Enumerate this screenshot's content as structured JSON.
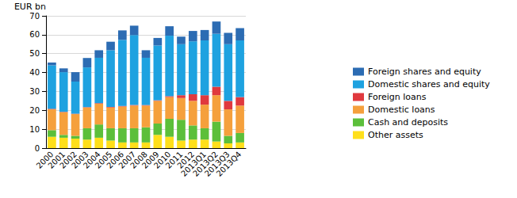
{
  "chart_data": {
    "type": "bar",
    "stacked": true,
    "grid": true,
    "legend": "right",
    "y_label": "EUR bn",
    "categories": [
      "2000",
      "2001",
      "2002",
      "2003",
      "2004",
      "2005",
      "2006",
      "2007",
      "2008",
      "2009",
      "2010",
      "2011",
      "2012",
      "2013Q1",
      "2013Q2",
      "2013Q3",
      "2013Q4"
    ],
    "ylim": [
      0,
      70
    ],
    "yticks": [
      0,
      10,
      20,
      30,
      40,
      50,
      60,
      70
    ],
    "series": [
      {
        "name": "Other assets",
        "color": "#ffdf1a",
        "values": [
          6,
          5.5,
          5,
          4.5,
          5.5,
          4,
          3,
          3,
          3,
          7,
          6,
          4,
          4.5,
          4.5,
          3.5,
          2.5,
          3
        ]
      },
      {
        "name": "Cash and deposits",
        "color": "#5cbf3a",
        "values": [
          3.5,
          1.5,
          1.5,
          6,
          7,
          6.5,
          7.5,
          7.5,
          8,
          6,
          9.5,
          11,
          7.5,
          6,
          10.5,
          4,
          5
        ]
      },
      {
        "name": "Domestic loans",
        "color": "#f5a03c",
        "values": [
          11,
          12,
          11.5,
          11,
          11,
          11,
          11.5,
          12,
          11.5,
          12,
          11.5,
          11.5,
          13,
          12.5,
          14,
          14,
          14.5
        ]
      },
      {
        "name": "Foreign loans",
        "color": "#e0393e",
        "values": [
          0.3,
          0.2,
          0.2,
          0.2,
          0.3,
          0.3,
          0.3,
          0.3,
          0.3,
          0.3,
          0.5,
          1.5,
          3.5,
          5,
          4.5,
          4.5,
          4.5
        ]
      },
      {
        "name": "Domestic shares and equity",
        "color": "#1ea2e0",
        "values": [
          23,
          21,
          17,
          21,
          24,
          30,
          35,
          37,
          25,
          29,
          32,
          27,
          28,
          29,
          28,
          30,
          30
        ]
      },
      {
        "name": "Foreign shares and equity",
        "color": "#2c6cb3",
        "values": [
          1.5,
          2,
          5,
          5,
          4,
          4.5,
          5,
          5,
          4,
          4,
          5,
          4,
          5.5,
          5.5,
          6.5,
          6,
          6.5
        ]
      }
    ]
  }
}
